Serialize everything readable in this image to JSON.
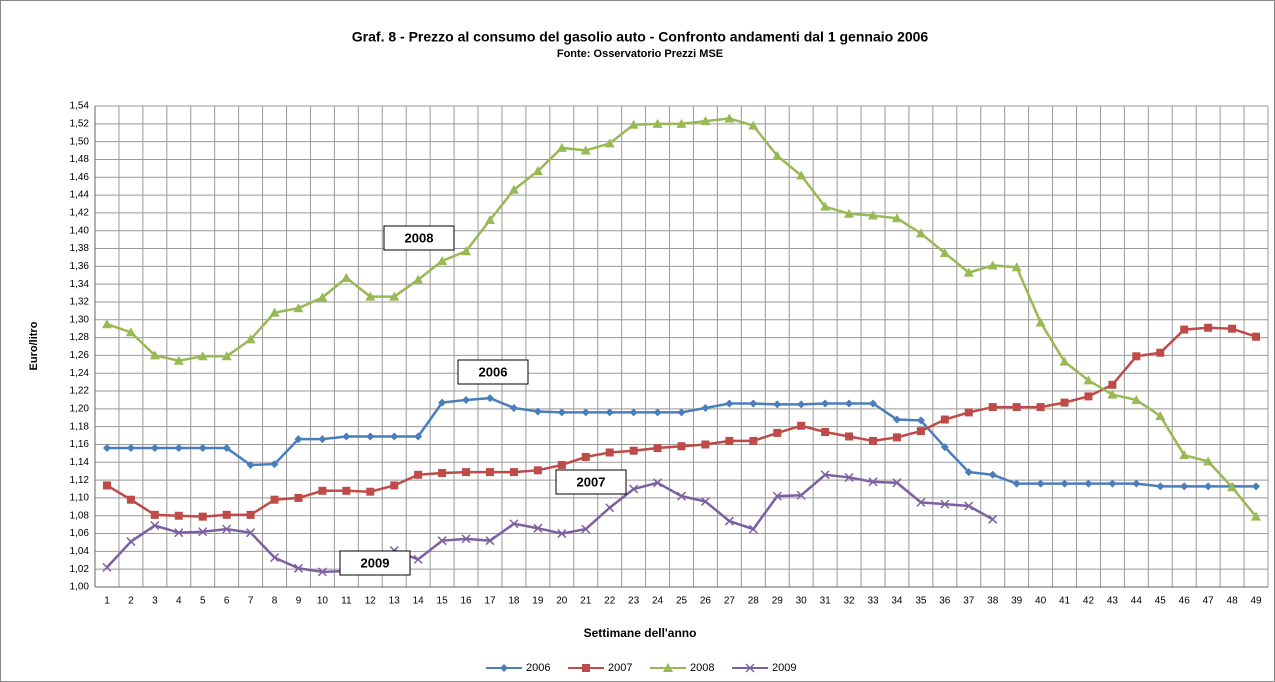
{
  "chart_data": {
    "type": "line",
    "title": "Graf. 8 - Prezzo al consumo del gasolio auto - Confronto andamenti dal 1 gennaio 2006",
    "subtitle": "Fonte: Osservatorio Prezzi MSE",
    "x_label": "Settimane dell'anno",
    "y_label": "Euro/litro",
    "categories": [
      1,
      2,
      3,
      4,
      5,
      6,
      7,
      8,
      9,
      10,
      11,
      12,
      13,
      14,
      15,
      16,
      17,
      18,
      19,
      20,
      21,
      22,
      23,
      24,
      25,
      26,
      27,
      28,
      29,
      30,
      31,
      32,
      33,
      34,
      35,
      36,
      37,
      38,
      39,
      40,
      41,
      42,
      43,
      44,
      45,
      46,
      47,
      48,
      49
    ],
    "ylim": [
      1.0,
      1.54
    ],
    "yticks": [
      {
        "value": 1.0,
        "label": "1,00"
      },
      {
        "value": 1.02,
        "label": "1,02"
      },
      {
        "value": 1.04,
        "label": "1,04"
      },
      {
        "value": 1.06,
        "label": "1,06"
      },
      {
        "value": 1.08,
        "label": "1,08"
      },
      {
        "value": 1.1,
        "label": "1,10"
      },
      {
        "value": 1.12,
        "label": "1,12"
      },
      {
        "value": 1.14,
        "label": "1,14"
      },
      {
        "value": 1.16,
        "label": "1,16"
      },
      {
        "value": 1.18,
        "label": "1,18"
      },
      {
        "value": 1.2,
        "label": "1,20"
      },
      {
        "value": 1.22,
        "label": "1,22"
      },
      {
        "value": 1.24,
        "label": "1,24"
      },
      {
        "value": 1.26,
        "label": "1,26"
      },
      {
        "value": 1.28,
        "label": "1,28"
      },
      {
        "value": 1.3,
        "label": "1,30"
      },
      {
        "value": 1.32,
        "label": "1,32"
      },
      {
        "value": 1.34,
        "label": "1,34"
      },
      {
        "value": 1.36,
        "label": "1,36"
      },
      {
        "value": 1.38,
        "label": "1,38"
      },
      {
        "value": 1.4,
        "label": "1,40"
      },
      {
        "value": 1.42,
        "label": "1,42"
      },
      {
        "value": 1.44,
        "label": "1,44"
      },
      {
        "value": 1.46,
        "label": "1,46"
      },
      {
        "value": 1.48,
        "label": "1,48"
      },
      {
        "value": 1.5,
        "label": "1,50"
      },
      {
        "value": 1.52,
        "label": "1,52"
      },
      {
        "value": 1.54,
        "label": "1,54"
      }
    ],
    "grid": true,
    "legend": "bottom",
    "series": [
      {
        "name": "2006",
        "color": "#4a7ebb",
        "marker": "diamond",
        "values": [
          1.156,
          1.156,
          1.156,
          1.156,
          1.156,
          1.156,
          1.137,
          1.138,
          1.166,
          1.166,
          1.169,
          1.169,
          1.169,
          1.169,
          1.207,
          1.21,
          1.212,
          1.201,
          1.197,
          1.196,
          1.196,
          1.196,
          1.196,
          1.196,
          1.196,
          1.201,
          1.206,
          1.206,
          1.205,
          1.205,
          1.206,
          1.206,
          1.206,
          1.188,
          1.187,
          1.157,
          1.129,
          1.126,
          1.116,
          1.116,
          1.116,
          1.116,
          1.116,
          1.116,
          1.113,
          1.113,
          1.113,
          1.113,
          1.113
        ]
      },
      {
        "name": "2007",
        "color": "#be4b48",
        "marker": "square",
        "values": [
          1.114,
          1.098,
          1.081,
          1.08,
          1.079,
          1.081,
          1.081,
          1.098,
          1.1,
          1.108,
          1.108,
          1.107,
          1.114,
          1.126,
          1.128,
          1.129,
          1.129,
          1.129,
          1.131,
          1.137,
          1.146,
          1.151,
          1.153,
          1.156,
          1.158,
          1.16,
          1.164,
          1.164,
          1.173,
          1.181,
          1.174,
          1.169,
          1.164,
          1.168,
          1.175,
          1.188,
          1.196,
          1.202,
          1.202,
          1.202,
          1.207,
          1.214,
          1.227,
          1.259,
          1.263,
          1.289,
          1.291,
          1.29,
          1.281
        ]
      },
      {
        "name": "2008",
        "color": "#98b954",
        "marker": "triangle",
        "values": [
          1.295,
          1.286,
          1.26,
          1.254,
          1.259,
          1.259,
          1.278,
          1.308,
          1.313,
          1.325,
          1.347,
          1.326,
          1.326,
          1.345,
          1.366,
          1.377,
          1.412,
          1.446,
          1.467,
          1.493,
          1.49,
          1.498,
          1.519,
          1.52,
          1.52,
          1.523,
          1.526,
          1.518,
          1.484,
          1.462,
          1.427,
          1.419,
          1.417,
          1.414,
          1.397,
          1.375,
          1.353,
          1.361,
          1.359,
          1.297,
          1.253,
          1.232,
          1.216,
          1.21,
          1.192,
          1.148,
          1.141,
          1.112,
          1.079
        ]
      },
      {
        "name": "2009",
        "color": "#7d60a0",
        "marker": "x",
        "values": [
          1.022,
          1.051,
          1.069,
          1.061,
          1.062,
          1.065,
          1.061,
          1.033,
          1.021,
          1.017,
          1.018,
          1.021,
          1.041,
          1.031,
          1.052,
          1.054,
          1.052,
          1.071,
          1.066,
          1.06,
          1.065,
          1.089,
          1.11,
          1.117,
          1.102,
          1.096,
          1.074,
          1.065,
          1.102,
          1.103,
          1.126,
          1.123,
          1.118,
          1.117,
          1.095,
          1.093,
          1.091,
          1.076,
          null,
          null,
          null,
          null,
          null,
          null,
          null,
          null,
          null,
          null,
          null
        ]
      }
    ],
    "annotations": [
      "2008",
      "2006",
      "2007",
      "2009"
    ]
  }
}
